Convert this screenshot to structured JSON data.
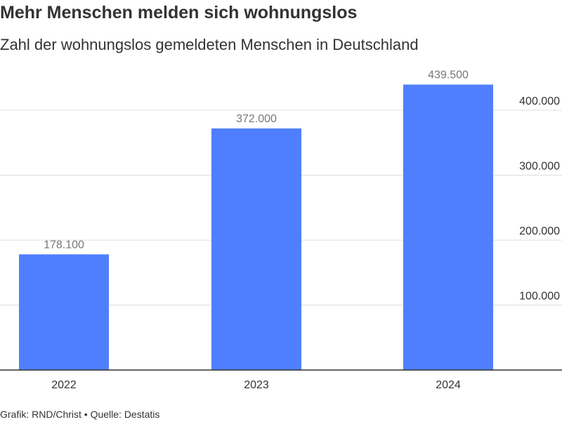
{
  "header": {
    "title": "Mehr Menschen melden sich wohnungslos",
    "subtitle": "Zahl der wohnungslos gemeldeten Menschen in Deutschland"
  },
  "footer": {
    "credit": "Grafik: RND/Christ • Quelle: Destatis"
  },
  "colors": {
    "bar": "#4f7ffe",
    "grid": "#dddddd",
    "axis": "#333333",
    "value_label": "#777777",
    "tick_label": "#333333"
  },
  "chart_data": {
    "type": "bar",
    "categories": [
      "2022",
      "2023",
      "2024"
    ],
    "values": [
      178100,
      372000,
      439500
    ],
    "value_labels": [
      "178.100",
      "372.000",
      "439.500"
    ],
    "y_ticks": [
      100000,
      200000,
      300000,
      400000
    ],
    "y_tick_labels": [
      "100.000",
      "200.000",
      "300.000",
      "400.000"
    ],
    "ylim": [
      0,
      480000
    ],
    "y_axis_position": "right",
    "grid": true,
    "legend": "none",
    "title": "Mehr Menschen melden sich wohnungslos",
    "subtitle": "Zahl der wohnungslos gemeldeten Menschen in Deutschland",
    "xlabel": "",
    "ylabel": ""
  }
}
